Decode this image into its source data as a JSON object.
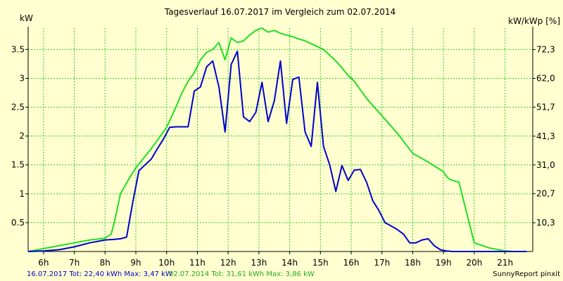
{
  "chart_data": {
    "type": "line",
    "title": "Tagesverlauf 16.07.2017 im Vergleich zum 02.07.2014",
    "ylabel_left": "kW",
    "ylabel_right": "kW/kWp [%]",
    "xlim": [
      5.5,
      21.9
    ],
    "ylim": [
      0,
      3.87
    ],
    "right_ylim": [
      0,
      80
    ],
    "x_ticks": [
      6,
      7,
      8,
      9,
      10,
      11,
      12,
      13,
      14,
      15,
      16,
      17,
      18,
      19,
      20,
      21
    ],
    "x_tick_labels": [
      "6h",
      "7h",
      "8h",
      "9h",
      "10h",
      "11h",
      "12h",
      "13h",
      "14h",
      "15h",
      "16h",
      "17h",
      "18h",
      "19h",
      "20h",
      "21h"
    ],
    "y_ticks_left": [
      0.5,
      1,
      1.5,
      2,
      2.5,
      3,
      3.5
    ],
    "y_tick_labels_left": [
      "0.5",
      "1",
      "1.5",
      "2",
      "2.5",
      "3",
      "3.5"
    ],
    "y_ticks_right": [
      10.3,
      20.7,
      31.0,
      41.3,
      51.7,
      62.0,
      72.3
    ],
    "y_tick_labels_right": [
      "10,3",
      "20,7",
      "31,0",
      "41,3",
      "51,7",
      "62,0",
      "72,3"
    ],
    "grid": true,
    "series": [
      {
        "name": "16.07.2017",
        "color": "#0000cc",
        "x": [
          5.5,
          6.0,
          6.5,
          7.0,
          7.5,
          8.0,
          8.3,
          8.5,
          8.7,
          8.9,
          9.1,
          9.3,
          9.5,
          9.7,
          9.9,
          10.1,
          10.3,
          10.5,
          10.7,
          10.9,
          11.1,
          11.3,
          11.5,
          11.7,
          11.9,
          12.1,
          12.3,
          12.5,
          12.7,
          12.9,
          13.1,
          13.3,
          13.5,
          13.7,
          13.9,
          14.1,
          14.3,
          14.5,
          14.7,
          14.9,
          15.1,
          15.3,
          15.5,
          15.7,
          15.9,
          16.1,
          16.3,
          16.5,
          16.7,
          16.9,
          17.1,
          17.3,
          17.5,
          17.7,
          17.9,
          18.1,
          18.3,
          18.5,
          18.7,
          18.9,
          19.1,
          19.3,
          19.5,
          19.7,
          19.9,
          20.1,
          20.3,
          20.5,
          20.7,
          20.9,
          21.1,
          21.3,
          21.5,
          21.7
        ],
        "values": [
          0.0,
          0.01,
          0.03,
          0.08,
          0.15,
          0.2,
          0.21,
          0.22,
          0.25,
          0.85,
          1.4,
          1.5,
          1.6,
          1.78,
          1.95,
          2.15,
          2.16,
          2.16,
          2.16,
          2.78,
          2.85,
          3.2,
          3.3,
          2.85,
          2.07,
          3.24,
          3.47,
          2.33,
          2.25,
          2.41,
          2.93,
          2.25,
          2.61,
          3.3,
          2.22,
          2.98,
          3.02,
          2.07,
          1.82,
          2.93,
          1.82,
          1.5,
          1.04,
          1.49,
          1.23,
          1.41,
          1.42,
          1.2,
          0.88,
          0.71,
          0.5,
          0.44,
          0.38,
          0.3,
          0.15,
          0.15,
          0.2,
          0.22,
          0.1,
          0.03,
          0.01,
          0.0,
          0.0,
          0.0,
          0.0,
          0.0,
          0.0,
          0.0,
          0.0,
          0.0,
          0.0,
          0.0,
          0.0,
          0.0
        ]
      },
      {
        "name": "02.07.2014",
        "color": "#22dd22",
        "x": [
          5.5,
          6.0,
          7.0,
          7.5,
          8.0,
          8.2,
          8.3,
          8.5,
          8.8,
          9.0,
          9.5,
          10.0,
          10.3,
          10.5,
          10.7,
          10.9,
          11.1,
          11.3,
          11.5,
          11.7,
          11.9,
          12.1,
          12.3,
          12.5,
          12.7,
          12.9,
          13.1,
          13.3,
          13.5,
          13.7,
          13.9,
          14.1,
          14.3,
          14.5,
          14.7,
          14.9,
          15.1,
          15.3,
          15.5,
          15.7,
          15.9,
          16.1,
          16.5,
          17.0,
          17.5,
          18.0,
          18.5,
          18.8,
          19.0,
          19.1,
          19.2,
          19.5,
          20.0,
          20.5,
          21.0,
          21.3,
          21.7
        ],
        "values": [
          0.0,
          0.05,
          0.15,
          0.2,
          0.23,
          0.3,
          0.5,
          1.0,
          1.28,
          1.45,
          1.78,
          2.15,
          2.5,
          2.75,
          2.95,
          3.1,
          3.32,
          3.45,
          3.5,
          3.62,
          3.32,
          3.7,
          3.62,
          3.65,
          3.75,
          3.83,
          3.87,
          3.8,
          3.83,
          3.78,
          3.75,
          3.72,
          3.68,
          3.65,
          3.6,
          3.55,
          3.5,
          3.4,
          3.3,
          3.18,
          3.05,
          2.95,
          2.65,
          2.35,
          2.05,
          1.7,
          1.55,
          1.45,
          1.38,
          1.3,
          1.25,
          1.2,
          0.15,
          0.06,
          0.01,
          0.0,
          0.0
        ]
      }
    ],
    "footer": {
      "series1": "16.07.2017 Tot: 22,40 kWh Max: 3,47 kW",
      "series2": "02.07.2014 Tot: 31,61 kWh Max: 3,86 kW",
      "credit": "SunnyReport pinxit"
    }
  }
}
